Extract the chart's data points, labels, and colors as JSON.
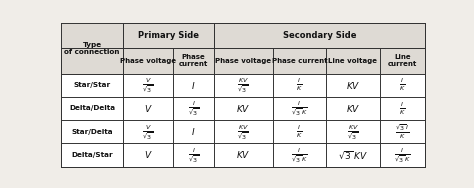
{
  "figsize": [
    4.74,
    1.88
  ],
  "dpi": 100,
  "bg_color": "#f0ede8",
  "header_bg": "#dedad4",
  "white_bg": "#ffffff",
  "border_color": "#333333",
  "text_color": "#111111",
  "col_props": [
    0.148,
    0.12,
    0.098,
    0.14,
    0.128,
    0.128,
    0.108
  ],
  "row_props": [
    0.175,
    0.175,
    0.162,
    0.162,
    0.162,
    0.162
  ],
  "headers_r1": [
    "Type\nof connection",
    "Primary Side",
    "",
    "Secondary Side",
    "",
    "",
    ""
  ],
  "headers_r2": [
    "",
    "Phase voltage",
    "Phase\ncurrent",
    "Phase voltage",
    "Phase current",
    "Line voltage",
    "Line\ncurrent"
  ],
  "rows": [
    [
      "Star/Star",
      "$\\frac{V}{\\sqrt{3}}$",
      "$I$",
      "$\\frac{KV}{\\sqrt{3}}$",
      "$\\frac{I}{K}$",
      "$KV$",
      "$\\frac{I}{K}$"
    ],
    [
      "Delta/Delta",
      "$V$",
      "$\\frac{I}{\\sqrt{3}}$",
      "$KV$",
      "$\\frac{I}{\\sqrt{3}\\,K}$",
      "$KV$",
      "$\\frac{I}{K}$"
    ],
    [
      "Star/Delta",
      "$\\frac{V}{\\sqrt{3}}$",
      "$I$",
      "$\\frac{KV}{\\sqrt{3}}$",
      "$\\frac{I}{K}$",
      "$\\frac{KV}{\\sqrt{3}}$",
      "$\\frac{\\sqrt{3}\\,I}{K}$"
    ],
    [
      "Delta/Star",
      "$V$",
      "$\\frac{I}{\\sqrt{3}}$",
      "$KV$",
      "$\\frac{I}{\\sqrt{3}\\,K}$",
      "$\\sqrt{3}\\,KV$",
      "$\\frac{I}{\\sqrt{3}\\,K}$"
    ]
  ]
}
